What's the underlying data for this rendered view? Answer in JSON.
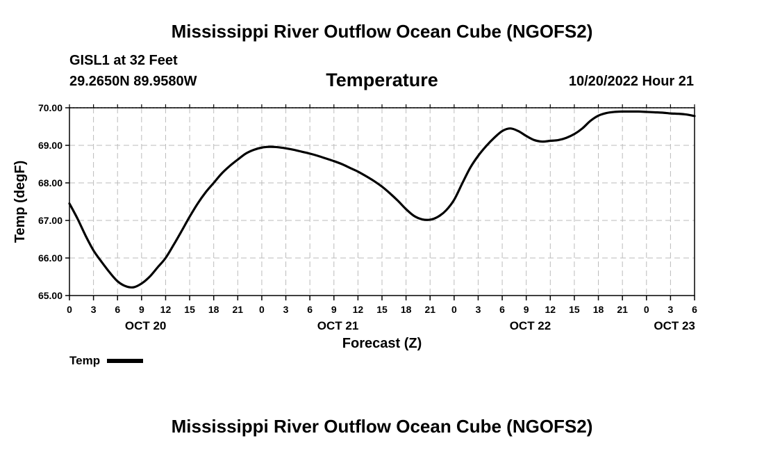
{
  "header": {
    "title": "Mississippi River Outflow Ocean Cube (NGOFS2)",
    "station": "GISL1 at 32 Feet",
    "coordinates": "29.2650N  89.9580W",
    "plot_title": "Temperature",
    "run_time": "10/20/2022 Hour 21"
  },
  "footer": {
    "title": "Mississippi River Outflow Ocean Cube (NGOFS2)"
  },
  "legend": {
    "label": "Temp"
  },
  "chart_data": {
    "type": "line",
    "title": "Temperature",
    "xlabel": "Forecast (Z)",
    "ylabel": "Temp (degF)",
    "xlim": [
      0,
      78
    ],
    "ylim": [
      65.0,
      70.0
    ],
    "grid": true,
    "legend_position": "bottom-left",
    "y_ticks": [
      65.0,
      66.0,
      67.0,
      68.0,
      69.0,
      70.0
    ],
    "y_tick_labels": [
      "65.00",
      "66.00",
      "67.00",
      "68.00",
      "69.00",
      "70.00"
    ],
    "x_ticks": [
      0,
      3,
      6,
      9,
      12,
      15,
      18,
      21,
      24,
      27,
      30,
      33,
      36,
      39,
      42,
      45,
      48,
      51,
      54,
      57,
      60,
      63,
      66,
      69,
      72,
      75,
      78
    ],
    "x_tick_labels": [
      "0",
      "3",
      "6",
      "9",
      "12",
      "15",
      "18",
      "21",
      "0",
      "3",
      "6",
      "9",
      "12",
      "15",
      "18",
      "21",
      "0",
      "3",
      "6",
      "9",
      "12",
      "15",
      "18",
      "21",
      "0",
      "3",
      "6"
    ],
    "date_labels": [
      {
        "x": 9.5,
        "label": "OCT 20"
      },
      {
        "x": 33.5,
        "label": "OCT 21"
      },
      {
        "x": 57.5,
        "label": "OCT 22"
      },
      {
        "x": 75.5,
        "label": "OCT 23"
      }
    ],
    "series": [
      {
        "name": "Temp",
        "x": [
          0,
          1,
          2,
          3,
          4,
          5,
          6,
          7,
          8,
          9,
          10,
          11,
          12,
          13,
          14,
          15,
          16,
          17,
          18,
          19,
          20,
          21,
          22,
          23,
          24,
          25,
          26,
          27,
          28,
          29,
          30,
          31,
          32,
          33,
          34,
          35,
          36,
          37,
          38,
          39,
          40,
          41,
          42,
          43,
          44,
          45,
          46,
          47,
          48,
          49,
          50,
          51,
          52,
          53,
          54,
          55,
          56,
          57,
          58,
          59,
          60,
          61,
          62,
          63,
          64,
          65,
          66,
          67,
          68,
          69,
          70,
          71,
          72,
          73,
          74,
          75,
          76,
          77,
          78
        ],
        "values": [
          67.45,
          67.05,
          66.6,
          66.2,
          65.9,
          65.62,
          65.38,
          65.25,
          65.22,
          65.32,
          65.5,
          65.75,
          66.0,
          66.35,
          66.72,
          67.1,
          67.45,
          67.75,
          68.0,
          68.25,
          68.45,
          68.62,
          68.78,
          68.88,
          68.94,
          68.96,
          68.95,
          68.92,
          68.88,
          68.83,
          68.78,
          68.72,
          68.65,
          68.58,
          68.5,
          68.4,
          68.3,
          68.18,
          68.05,
          67.9,
          67.72,
          67.52,
          67.3,
          67.12,
          67.03,
          67.02,
          67.1,
          67.27,
          67.55,
          67.98,
          68.4,
          68.72,
          68.98,
          69.2,
          69.38,
          69.45,
          69.38,
          69.25,
          69.14,
          69.1,
          69.12,
          69.14,
          69.2,
          69.3,
          69.45,
          69.65,
          69.79,
          69.86,
          69.89,
          69.9,
          69.9,
          69.9,
          69.89,
          69.88,
          69.87,
          69.85,
          69.84,
          69.82,
          69.78
        ]
      }
    ]
  }
}
